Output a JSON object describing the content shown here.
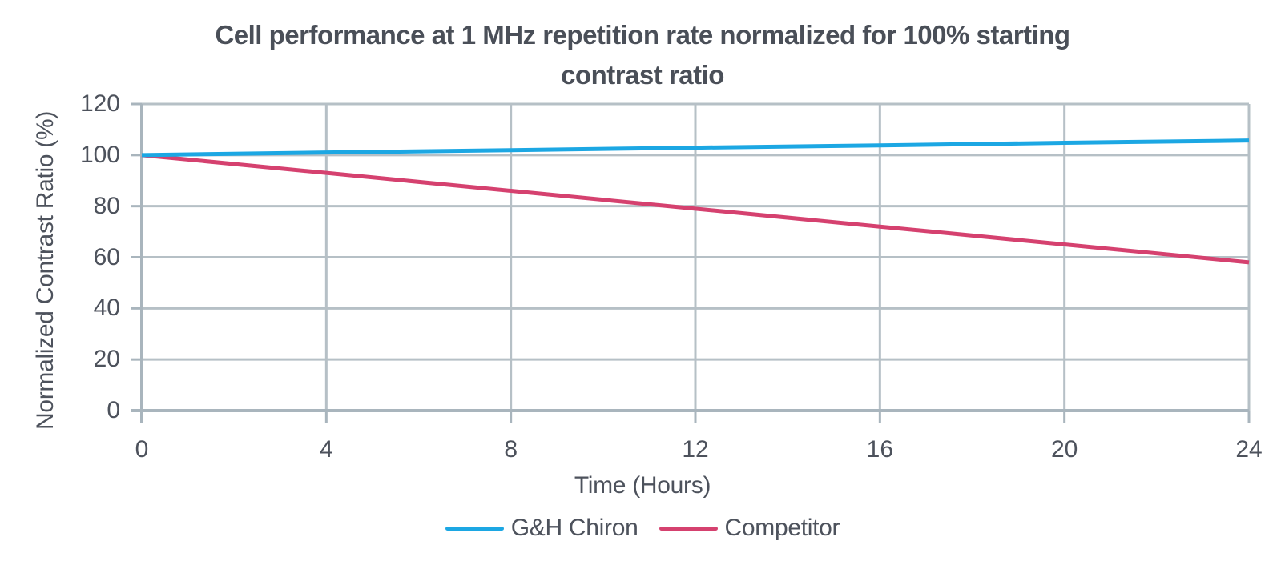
{
  "chart_data": {
    "type": "line",
    "title": "Cell performance at 1 MHz repetition rate normalized for 100% starting contrast ratio",
    "title_lines": [
      "Cell performance at 1 MHz repetition rate normalized for 100% starting",
      "contrast ratio"
    ],
    "xlabel": "Time (Hours)",
    "ylabel": "Normalized Contrast Ratio (%)",
    "x": [
      0,
      4,
      8,
      12,
      16,
      20,
      24
    ],
    "x_ticks": [
      0,
      4,
      8,
      12,
      16,
      20,
      24
    ],
    "y_ticks": [
      0,
      20,
      40,
      60,
      80,
      100,
      120
    ],
    "xlim": [
      0,
      24
    ],
    "ylim": [
      0,
      120
    ],
    "grid": true,
    "legend_position": "bottom",
    "series": [
      {
        "name": "G&H Chiron",
        "color": "#1ca7e3",
        "values": [
          100,
          101,
          101.9,
          102.9,
          103.8,
          104.8,
          105.7
        ]
      },
      {
        "name": "Competitor",
        "color": "#d5416f",
        "values": [
          100,
          93,
          86,
          79,
          72,
          65,
          58
        ]
      }
    ],
    "colors": {
      "grid": "#b6c0c6",
      "axis": "#a9b5bd",
      "text": "#4d525c",
      "title": "#4a4f58"
    }
  }
}
